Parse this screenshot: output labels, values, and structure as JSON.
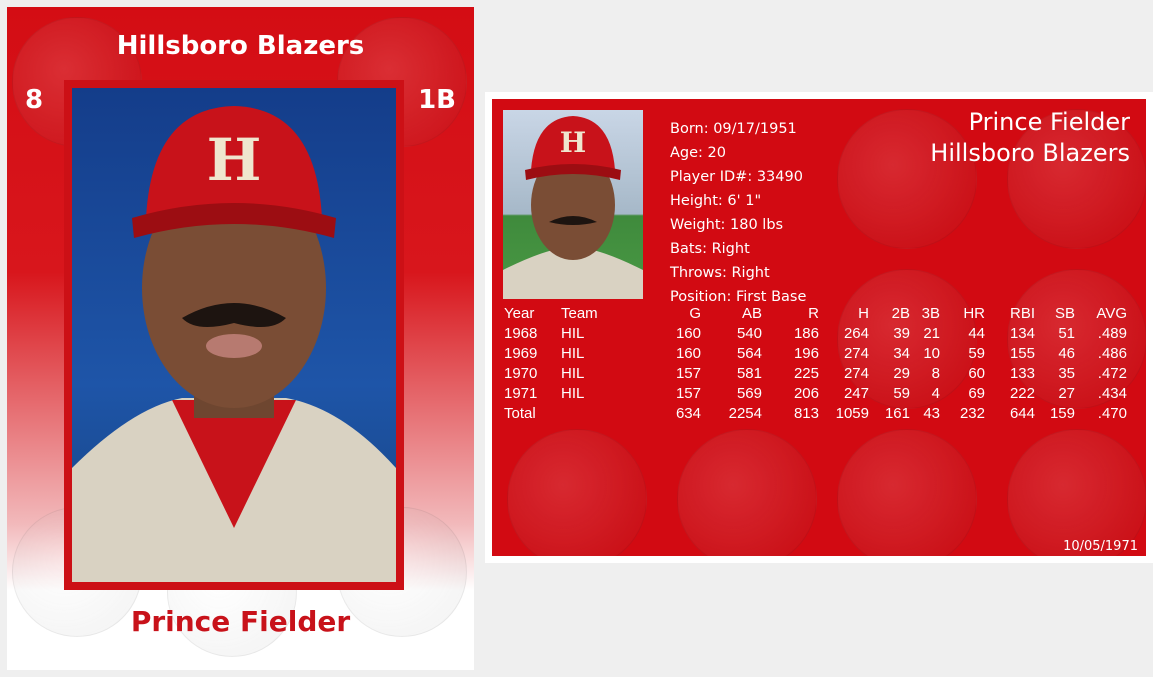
{
  "front": {
    "team": "Hillsboro Blazers",
    "number": "8",
    "position": "1B",
    "name": "Prince Fielder",
    "cap_letter": "H"
  },
  "back": {
    "name": "Prince Fielder",
    "team": "Hillsboro Blazers",
    "cap_letter": "H",
    "info": [
      "Born: 09/17/1951",
      "Age: 20",
      "Player ID#: 33490",
      "Height: 6' 1\"",
      "Weight: 180 lbs",
      "Bats: Right",
      "Throws: Right",
      "Position: First Base"
    ],
    "stats_headers": [
      "Year",
      "Team",
      "G",
      "AB",
      "R",
      "H",
      "2B",
      "3B",
      "HR",
      "RBI",
      "SB",
      "AVG"
    ],
    "stats_rows": [
      [
        "1968",
        "HIL",
        "160",
        "540",
        "186",
        "264",
        "39",
        "21",
        "44",
        "134",
        "51",
        ".489"
      ],
      [
        "1969",
        "HIL",
        "160",
        "564",
        "196",
        "274",
        "34",
        "10",
        "59",
        "155",
        "46",
        ".486"
      ],
      [
        "1970",
        "HIL",
        "157",
        "581",
        "225",
        "274",
        "29",
        "8",
        "60",
        "133",
        "35",
        ".472"
      ],
      [
        "1971",
        "HIL",
        "157",
        "569",
        "206",
        "247",
        "59",
        "4",
        "69",
        "222",
        "27",
        ".434"
      ],
      [
        "Total",
        "",
        "634",
        "2254",
        "813",
        "1059",
        "161",
        "43",
        "232",
        "644",
        "159",
        ".470"
      ]
    ],
    "date": "10/05/1971"
  },
  "colors": {
    "card_red": "#d20a12",
    "name_red": "#c8121a"
  }
}
